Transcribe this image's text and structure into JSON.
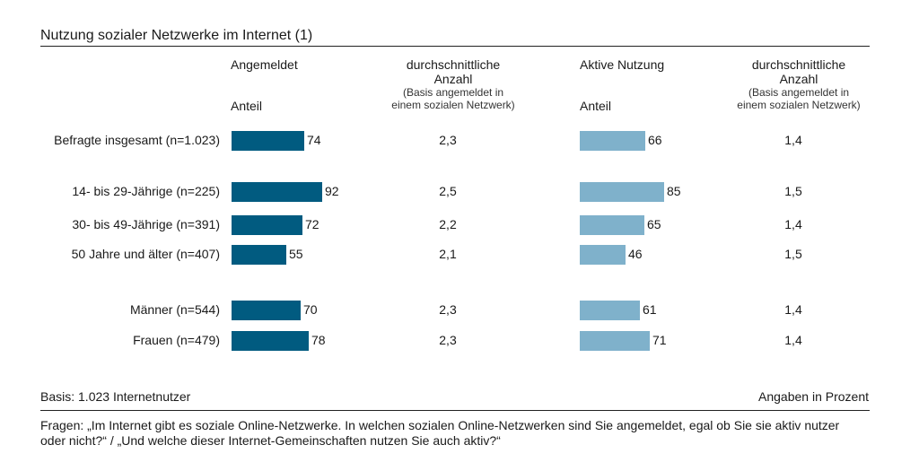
{
  "title": "Nutzung sozialer Netzwerke im Internet (1)",
  "colors": {
    "registered": "#015b80",
    "active": "#7fb1cb"
  },
  "headers": {
    "registered": "Angemeldet",
    "registered_sub": "Anteil",
    "avg_registered_1": "durchschnittliche",
    "avg_registered_2": "Anzahl",
    "avg_registered_3": "(Basis angemeldet in",
    "avg_registered_4": "einem sozialen Netzwerk)",
    "active": "Aktive Nutzung",
    "active_sub": "Anteil",
    "avg_active_1": "durchschnittliche",
    "avg_active_2": "Anzahl",
    "avg_active_3": "(Basis angemeldet in",
    "avg_active_4": "einem sozialen Netzwerk)"
  },
  "chart_data": {
    "type": "bar",
    "orientation": "horizontal",
    "unit": "Angaben in Prozent",
    "categories": [
      "Befragte insgesamt (n=1.023)",
      "14- bis 29-Jährige (n=225)",
      "30- bis 49-Jährige (n=391)",
      "50 Jahre und älter (n=407)",
      "Männer (n=544)",
      "Frauen (n=479)"
    ],
    "series": [
      {
        "name": "Angemeldet",
        "values": [
          74,
          92,
          72,
          55,
          70,
          78
        ]
      },
      {
        "name": "Aktive Nutzung",
        "values": [
          66,
          85,
          65,
          46,
          61,
          71
        ]
      }
    ],
    "avg_registered": [
      "2,3",
      "2,5",
      "2,2",
      "2,1",
      "2,3",
      "2,3"
    ],
    "avg_active": [
      "1,4",
      "1,5",
      "1,4",
      "1,5",
      "1,4",
      "1,4"
    ]
  },
  "footer": {
    "basis": "Basis: 1.023 Internetnutzer",
    "unit_note": "Angaben in Prozent",
    "question_line1": "Fragen: „Im Internet gibt es soziale Online-Netzwerke. In welchen sozialen Online-Netzwerken sind Sie angemeldet, egal ob Sie sie aktiv nutzer",
    "question_line2": "oder nicht?“ / „Und welche dieser Internet-Gemeinschaften nutzen Sie auch aktiv?“"
  }
}
